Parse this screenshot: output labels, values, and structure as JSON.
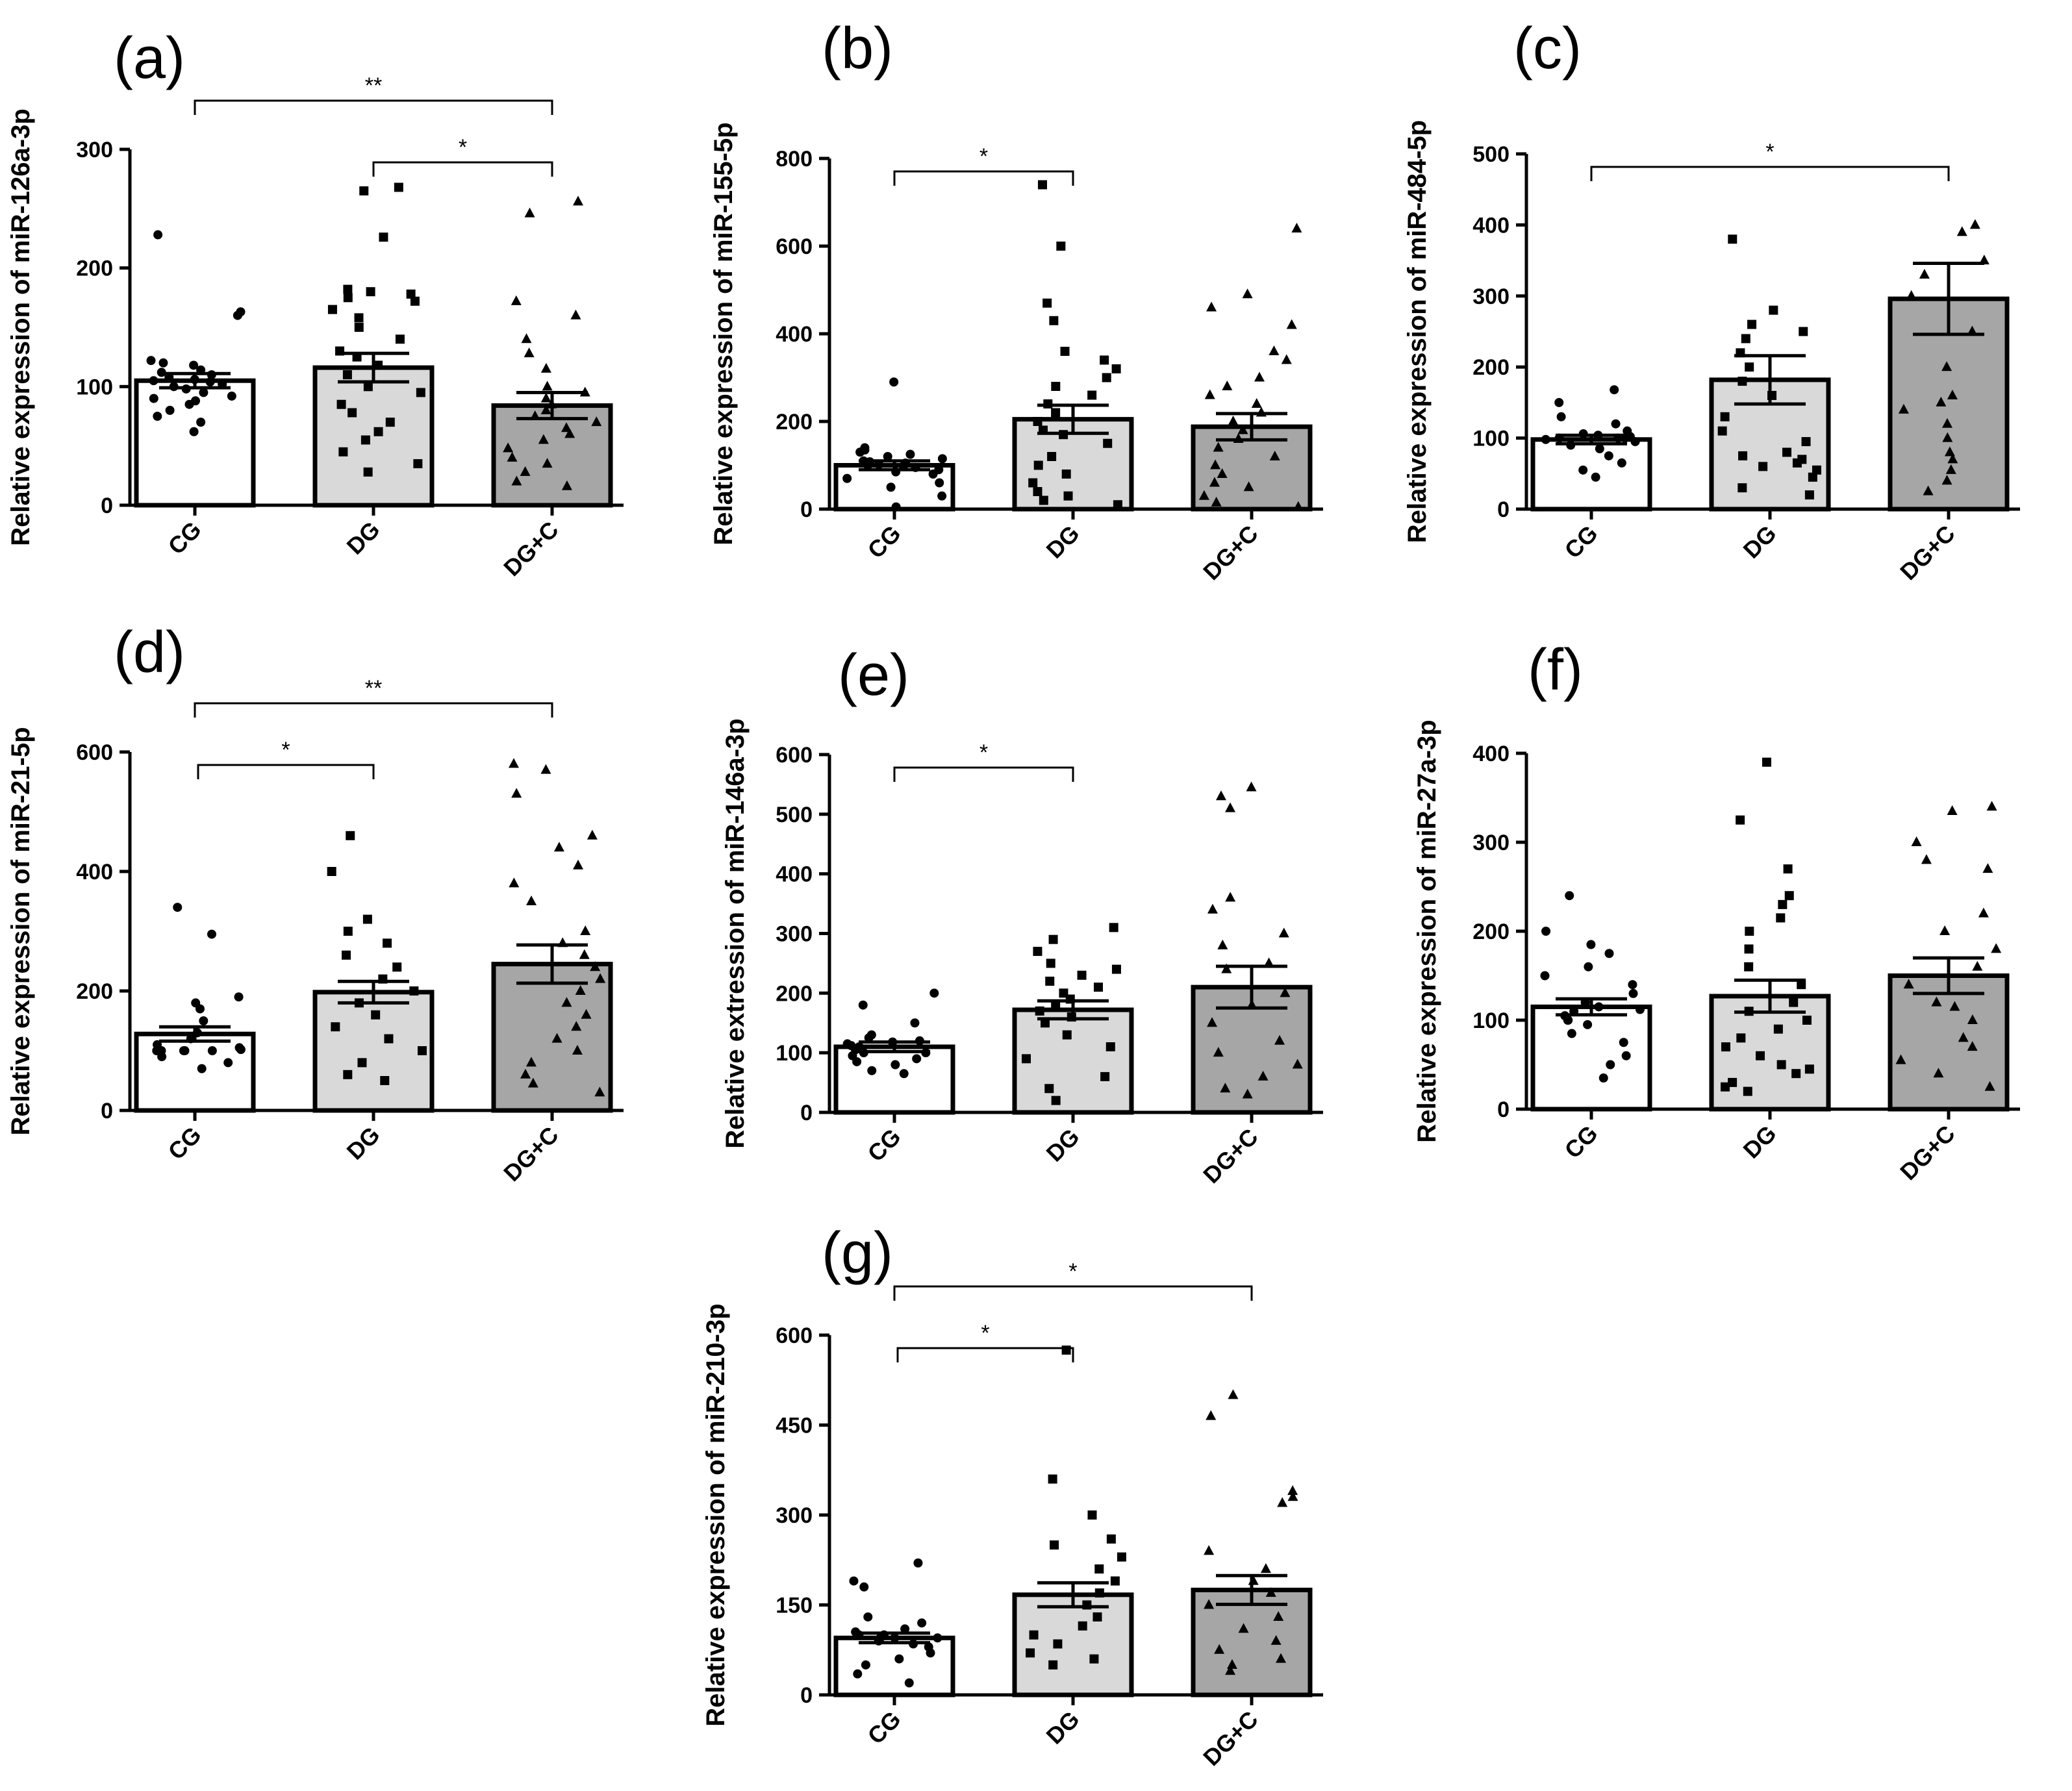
{
  "chart_data": [
    {
      "id": "a",
      "panel_label": "(a)",
      "type": "bar",
      "ylabel": "Relative expression of miR-126a-3p",
      "categories": [
        "CG",
        "DG",
        "DG+C"
      ],
      "values": [
        105,
        116,
        84
      ],
      "sem": [
        6,
        12,
        11
      ],
      "ylim": [
        0,
        300
      ],
      "yticks": [
        "0",
        "100",
        "200",
        "300"
      ],
      "fills": [
        "#ffffff",
        "#d9d9d9",
        "#a6a6a6"
      ],
      "markers": [
        "circle",
        "square",
        "triangle"
      ],
      "points": [
        [
          62,
          70,
          75,
          80,
          85,
          88,
          90,
          92,
          95,
          98,
          100,
          102,
          104,
          105,
          106,
          108,
          110,
          112,
          114,
          118,
          120,
          122,
          160,
          163,
          228
        ],
        [
          28,
          35,
          45,
          55,
          62,
          70,
          78,
          85,
          95,
          100,
          110,
          118,
          125,
          130,
          140,
          150,
          158,
          165,
          172,
          175,
          178,
          180,
          182,
          226,
          265,
          268
        ],
        [
          16,
          20,
          28,
          35,
          40,
          48,
          55,
          60,
          65,
          70,
          75,
          80,
          85,
          90,
          95,
          100,
          115,
          128,
          140,
          160,
          172,
          246,
          256
        ]
      ],
      "significance": [
        {
          "from": 0,
          "to": 2,
          "label": "**"
        },
        {
          "from": 1,
          "to": 2,
          "label": "*"
        }
      ]
    },
    {
      "id": "b",
      "panel_label": "(b)",
      "type": "bar",
      "ylabel": "Relative expression of miR-155-5p",
      "categories": [
        "CG",
        "DG",
        "DG+C"
      ],
      "values": [
        100,
        205,
        188
      ],
      "sem": [
        10,
        32,
        30
      ],
      "ylim": [
        0,
        800
      ],
      "yticks": [
        "0",
        "200",
        "400",
        "600",
        "800"
      ],
      "fills": [
        "#ffffff",
        "#d9d9d9",
        "#a6a6a6"
      ],
      "markers": [
        "circle",
        "square",
        "triangle"
      ],
      "points": [
        [
          5,
          30,
          50,
          60,
          70,
          80,
          85,
          90,
          95,
          98,
          100,
          102,
          105,
          108,
          110,
          115,
          120,
          125,
          130,
          135,
          140,
          290
        ],
        [
          10,
          20,
          30,
          40,
          60,
          80,
          100,
          120,
          150,
          170,
          180,
          200,
          220,
          240,
          260,
          280,
          300,
          320,
          340,
          360,
          430,
          470,
          600,
          740
        ],
        [
          5,
          15,
          30,
          50,
          60,
          80,
          100,
          120,
          140,
          160,
          180,
          200,
          220,
          240,
          260,
          280,
          300,
          340,
          360,
          420,
          460,
          490,
          640
        ]
      ],
      "significance": [
        {
          "from": 0,
          "to": 1,
          "label": "*"
        }
      ]
    },
    {
      "id": "c",
      "panel_label": "(c)",
      "type": "bar",
      "ylabel": "Relative expression of miR-484-5p",
      "categories": [
        "CG",
        "DG",
        "DG+C"
      ],
      "values": [
        98,
        182,
        296
      ],
      "sem": [
        6,
        34,
        50
      ],
      "ylim": [
        0,
        500
      ],
      "yticks": [
        "0",
        "100",
        "200",
        "300",
        "400",
        "500"
      ],
      "fills": [
        "#ffffff",
        "#d9d9d9",
        "#a6a6a6"
      ],
      "markers": [
        "circle",
        "square",
        "triangle"
      ],
      "points": [
        [
          45,
          55,
          65,
          75,
          85,
          90,
          95,
          98,
          100,
          100,
          100,
          102,
          104,
          106,
          110,
          120,
          130,
          150,
          168
        ],
        [
          20,
          30,
          45,
          55,
          60,
          65,
          70,
          75,
          80,
          95,
          110,
          130,
          160,
          180,
          200,
          220,
          240,
          250,
          260,
          280,
          380
        ],
        [
          25,
          40,
          55,
          70,
          80,
          100,
          120,
          140,
          150,
          160,
          200,
          250,
          300,
          330,
          350,
          390,
          400
        ]
      ],
      "significance": [
        {
          "from": 0,
          "to": 2,
          "label": "*"
        }
      ]
    },
    {
      "id": "d",
      "panel_label": "(d)",
      "type": "bar",
      "ylabel": "Relative expression of miR-21-5p",
      "categories": [
        "CG",
        "DG",
        "DG+C"
      ],
      "values": [
        128,
        198,
        245
      ],
      "sem": [
        12,
        18,
        32
      ],
      "ylim": [
        0,
        600
      ],
      "yticks": [
        "0",
        "200",
        "400",
        "600"
      ],
      "fills": [
        "#ffffff",
        "#d9d9d9",
        "#a6a6a6"
      ],
      "markers": [
        "circle",
        "square",
        "triangle"
      ],
      "points": [
        [
          70,
          80,
          90,
          100,
          100,
          100,
          100,
          100,
          102,
          105,
          110,
          120,
          130,
          150,
          170,
          180,
          190,
          295,
          340
        ],
        [
          50,
          60,
          80,
          100,
          120,
          140,
          160,
          180,
          200,
          220,
          240,
          260,
          280,
          300,
          320,
          400,
          460
        ],
        [
          30,
          45,
          60,
          80,
          100,
          120,
          140,
          160,
          180,
          200,
          220,
          240,
          260,
          280,
          300,
          350,
          380,
          410,
          440,
          460,
          530,
          580,
          570
        ]
      ],
      "significance": [
        {
          "from": 0,
          "to": 1,
          "label": "*"
        },
        {
          "from": 0,
          "to": 2,
          "label": "**"
        }
      ]
    },
    {
      "id": "e",
      "panel_label": "(e)",
      "type": "bar",
      "ylabel": "Relative extression of miR-146a-3p",
      "categories": [
        "CG",
        "DG",
        "DG+C"
      ],
      "values": [
        110,
        172,
        210
      ],
      "sem": [
        8,
        15,
        35
      ],
      "ylim": [
        0,
        600
      ],
      "yticks": [
        "0",
        "100",
        "200",
        "300",
        "400",
        "500",
        "600"
      ],
      "fills": [
        "#ffffff",
        "#d9d9d9",
        "#a6a6a6"
      ],
      "markers": [
        "circle",
        "square",
        "triangle"
      ],
      "points": [
        [
          65,
          70,
          80,
          85,
          90,
          95,
          100,
          100,
          105,
          110,
          112,
          115,
          118,
          120,
          125,
          130,
          150,
          180,
          200
        ],
        [
          20,
          40,
          60,
          90,
          110,
          130,
          150,
          160,
          170,
          180,
          190,
          200,
          210,
          220,
          230,
          240,
          250,
          270,
          290,
          310
        ],
        [
          30,
          40,
          60,
          80,
          100,
          120,
          150,
          180,
          200,
          240,
          250,
          280,
          300,
          340,
          360,
          510,
          530,
          545
        ]
      ],
      "significance": [
        {
          "from": 0,
          "to": 1,
          "label": "*"
        }
      ]
    },
    {
      "id": "f",
      "panel_label": "(f)",
      "type": "bar",
      "ylabel": "Relative expression of miR-27a-3p",
      "categories": [
        "CG",
        "DG",
        "DG+C"
      ],
      "values": [
        115,
        127,
        150
      ],
      "sem": [
        9,
        18,
        20
      ],
      "ylim": [
        0,
        400
      ],
      "yticks": [
        "0",
        "100",
        "200",
        "300",
        "400"
      ],
      "fills": [
        "#ffffff",
        "#d9d9d9",
        "#a6a6a6"
      ],
      "markers": [
        "circle",
        "square",
        "triangle"
      ],
      "points": [
        [
          35,
          50,
          60,
          75,
          85,
          95,
          100,
          100,
          105,
          110,
          112,
          115,
          120,
          130,
          140,
          150,
          160,
          175,
          185,
          200,
          240
        ],
        [
          20,
          25,
          30,
          40,
          45,
          50,
          60,
          70,
          80,
          90,
          100,
          110,
          120,
          140,
          160,
          180,
          200,
          215,
          230,
          240,
          270,
          325,
          390
        ],
        [
          25,
          40,
          55,
          70,
          80,
          100,
          115,
          120,
          140,
          160,
          180,
          200,
          220,
          270,
          280,
          300,
          335,
          340
        ]
      ],
      "significance": []
    },
    {
      "id": "g",
      "panel_label": "(g)",
      "type": "bar",
      "ylabel": "Relative expression of miR-210-3p",
      "categories": [
        "CG",
        "DG",
        "DG+C"
      ],
      "values": [
        95,
        167,
        175
      ],
      "sem": [
        8,
        20,
        24
      ],
      "ylim": [
        0,
        600
      ],
      "yticks": [
        "0",
        "150",
        "300",
        "450",
        "600"
      ],
      "fills": [
        "#ffffff",
        "#d9d9d9",
        "#a6a6a6"
      ],
      "markers": [
        "circle",
        "square",
        "triangle"
      ],
      "points": [
        [
          20,
          35,
          50,
          60,
          70,
          80,
          85,
          90,
          95,
          95,
          95,
          100,
          100,
          105,
          110,
          120,
          130,
          180,
          190,
          220
        ],
        [
          50,
          60,
          70,
          85,
          100,
          115,
          130,
          150,
          170,
          190,
          210,
          230,
          250,
          260,
          300,
          360,
          575
        ],
        [
          40,
          50,
          60,
          75,
          90,
          110,
          130,
          150,
          170,
          190,
          210,
          240,
          320,
          330,
          340,
          465,
          500
        ]
      ],
      "significance": [
        {
          "from": 0,
          "to": 1,
          "label": "*"
        },
        {
          "from": 0,
          "to": 2,
          "label": "*"
        }
      ]
    }
  ]
}
